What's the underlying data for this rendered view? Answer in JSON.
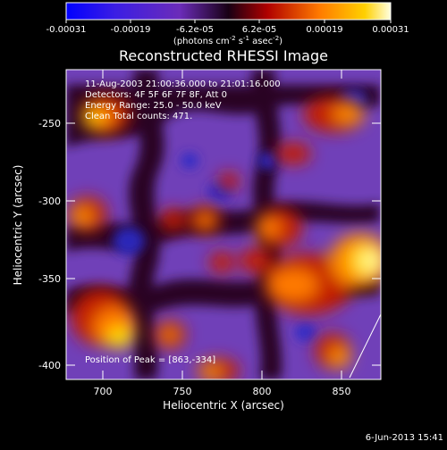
{
  "title": "Reconstructed RHESSI Image",
  "colorbar": {
    "tick_labels": [
      "-0.00031",
      "-0.00019",
      "-6.2e-05",
      "6.2e-05",
      "0.00019",
      "0.00031"
    ],
    "units_prefix": "(photons cm",
    "units_exp1": "-2",
    "units_mid1": " s",
    "units_exp2": "-1",
    "units_mid2": " asec",
    "units_exp3": "-2",
    "units_suffix": ")"
  },
  "overlay": {
    "line1": "11-Aug-2003 21:00:36.000 to 21:01:16.000",
    "line2": "Detectors: 4F 5F 6F 7F 8F, Att 0",
    "line3": "Energy Range: 25.0 - 50.0 keV",
    "line4": "Clean     Total counts: 471.",
    "peak": "Position of Peak = [863,-334]"
  },
  "axes": {
    "x_title": "Heliocentric X (arcsec)",
    "y_title": "Heliocentric Y (arcsec)",
    "x_ticks": [
      "700",
      "750",
      "800",
      "850"
    ],
    "y_ticks": [
      "-250",
      "-300",
      "-350",
      "-400"
    ]
  },
  "timestamp": "6-Jun-2013 15:41",
  "colors": {
    "background": "#000000",
    "axis": "#ffffff",
    "positive_hot": "#ffff80",
    "negative_cold": "#2030c0"
  }
}
